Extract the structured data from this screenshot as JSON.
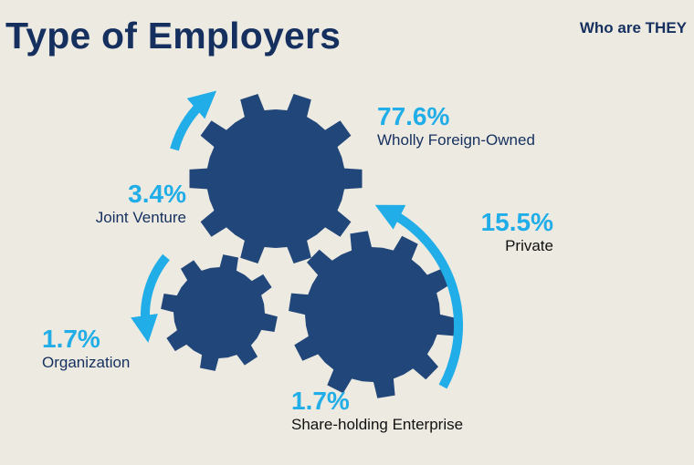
{
  "header": {
    "title": "Type of Employers",
    "tagline": "Who are THEY"
  },
  "stats": {
    "wfo": {
      "percent": "77.6%",
      "label": "Wholly Foreign-Owned"
    },
    "jv": {
      "percent": "3.4%",
      "label": "Joint Venture"
    },
    "private": {
      "percent": "15.5%",
      "label": "Private"
    },
    "org": {
      "percent": "1.7%",
      "label": "Organization"
    },
    "she": {
      "percent": "1.7%",
      "label": "Share-holding  Enterprise"
    }
  },
  "colors": {
    "background": "#edeae2",
    "gear": "#214679",
    "accent": "#21ade7",
    "title": "#15305f"
  },
  "icons": [
    "gear-icon",
    "arrow-icon"
  ]
}
